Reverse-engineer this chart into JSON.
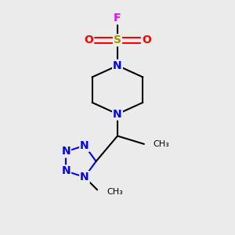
{
  "bg_color": "#ebebeb",
  "atom_colors": {
    "N": "#0000FF",
    "O": "#FF0000",
    "S": "#999900",
    "F": "#FF00FF",
    "C": "#000000"
  },
  "bond_color": "#000000",
  "bond_width": 1.5,
  "font_size_atom": 10,
  "font_size_methyl": 8,
  "figsize": [
    3.0,
    3.0
  ],
  "dpi": 100,
  "xlim": [
    0,
    10
  ],
  "ylim": [
    0,
    10
  ]
}
